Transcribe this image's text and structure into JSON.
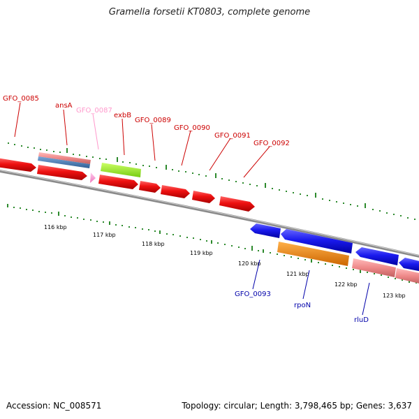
{
  "title": "Gramella forsetii KT0803, complete genome",
  "footer": {
    "accession": "Accession: NC_008571",
    "summary": "Topology: circular; Length: 3,798,465 bp; Genes: 3,637"
  },
  "colors": {
    "forward_cds": "#ee1111",
    "reverse_cds": "#1a1aee",
    "rrna_pink": "#ee8888",
    "steel_blue": "#4a7fb8",
    "light_pink": "#ff99cc",
    "lime": "#99ee33",
    "orange": "#ff8800",
    "tick_green": "#2d8a2d",
    "backbone": "#888888"
  },
  "scale_labels": [
    "116 kbp",
    "117 kbp",
    "118 kbp",
    "119 kbp",
    "120 kbp",
    "121 kbp",
    "122 kbp",
    "123 kbp"
  ],
  "gene_labels": [
    {
      "text": "GFO_0085",
      "color": "#cc0000"
    },
    {
      "text": "ansA",
      "color": "#cc0000"
    },
    {
      "text": "GFO_0087",
      "color": "#ff99cc"
    },
    {
      "text": "exbB",
      "color": "#cc0000"
    },
    {
      "text": "GFO_0089",
      "color": "#cc0000"
    },
    {
      "text": "GFO_0090",
      "color": "#cc0000"
    },
    {
      "text": "GFO_0091",
      "color": "#cc0000"
    },
    {
      "text": "GFO_0092",
      "color": "#cc0000"
    },
    {
      "text": "GFO_0093",
      "color": "#0000aa"
    },
    {
      "text": "rpoN",
      "color": "#0000aa"
    },
    {
      "text": "rluD",
      "color": "#0000aa"
    }
  ]
}
